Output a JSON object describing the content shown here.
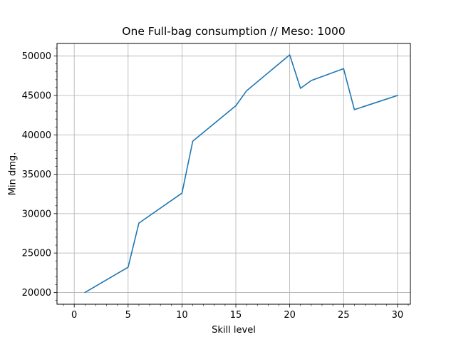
{
  "chart_data": {
    "type": "line",
    "title": "One Full-bag consumption // Meso: 1000",
    "xlabel": "Skill level",
    "ylabel": "Min dmg.",
    "xlim": [
      -1.6,
      31.2
    ],
    "ylim": [
      18500,
      51600
    ],
    "xticks": [
      0,
      5,
      10,
      15,
      20,
      25,
      30
    ],
    "yticks": [
      20000,
      25000,
      30000,
      35000,
      40000,
      45000,
      50000
    ],
    "xtick_labels": [
      "0",
      "5",
      "10",
      "15",
      "20",
      "25",
      "30"
    ],
    "ytick_labels": [
      "20000",
      "25000",
      "30000",
      "35000",
      "40000",
      "45000",
      "50000"
    ],
    "x_minor_step": 1,
    "y_minor_step": 1000,
    "grid": true,
    "series": [
      {
        "color": "#1f77b4",
        "x": [
          1,
          5,
          6,
          10,
          11,
          15,
          16,
          20,
          21,
          22,
          25,
          26,
          28,
          30
        ],
        "values": [
          20000,
          23200,
          28800,
          32600,
          39200,
          43700,
          45600,
          50150,
          45900,
          46900,
          48400,
          43200,
          44100,
          45000
        ]
      }
    ]
  }
}
